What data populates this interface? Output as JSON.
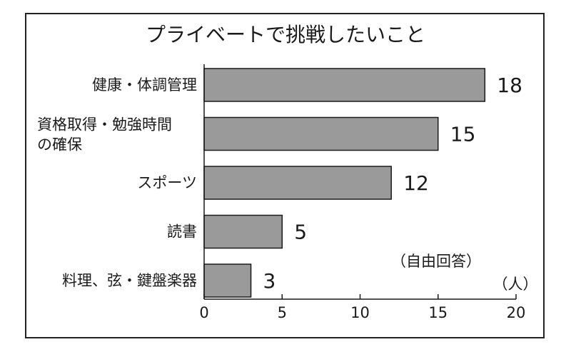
{
  "chart_data": {
    "type": "bar",
    "orientation": "horizontal",
    "title": "プライベートで挑戦したいこと",
    "categories": [
      [
        "健康・体調管理"
      ],
      [
        "資格取得・勉強時間",
        "の確保"
      ],
      [
        "スポーツ"
      ],
      [
        "読書"
      ],
      [
        "料理、弦・鍵盤楽器"
      ]
    ],
    "values": [
      18,
      15,
      12,
      5,
      3
    ],
    "xlim": [
      0,
      20
    ],
    "xticks": [
      0,
      5,
      10,
      15,
      20
    ],
    "unit": "（人）",
    "note": "（自由回答）",
    "colors": {
      "bar": "#9a9a9a",
      "bar_edge": "#1a1a1a"
    }
  }
}
